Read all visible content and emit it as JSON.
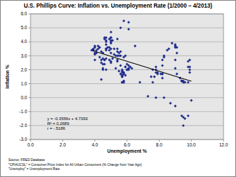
{
  "chart_data": {
    "type": "scatter",
    "title": "U.S. Phillips Curve: Inflation vs. Unemployment Rate (1/2000 – 4/2013)",
    "x_label": "Unemployment %",
    "y_label": "Inflation %",
    "xlim": [
      0,
      12
    ],
    "ylim": [
      -3,
      6
    ],
    "xticks": [
      {
        "value": 0,
        "label": "0.0"
      },
      {
        "value": 2,
        "label": "2.0"
      },
      {
        "value": 4,
        "label": "4.0"
      },
      {
        "value": 6,
        "label": "6.0"
      },
      {
        "value": 8,
        "label": "8.0"
      },
      {
        "value": 10,
        "label": "10.0"
      },
      {
        "value": 12,
        "label": "12.0"
      }
    ],
    "yticks": [
      {
        "value": -3,
        "label": "-3.0"
      },
      {
        "value": -2,
        "label": "-2.0"
      },
      {
        "value": -1,
        "label": "-1.0"
      },
      {
        "value": 0,
        "label": "0.0"
      },
      {
        "value": 1,
        "label": "1.0"
      },
      {
        "value": 2,
        "label": "2.0"
      },
      {
        "value": 3,
        "label": "3.0"
      },
      {
        "value": 4,
        "label": "4.0"
      },
      {
        "value": 5,
        "label": "5.0"
      },
      {
        "value": 6,
        "label": "6.0"
      }
    ],
    "grid": true,
    "annotations": [
      "y = -0.3556x + 4.7393",
      "R² = 0.2689",
      "r = -.5186"
    ],
    "source": [
      "Source:  FRED Database",
      "\"CPIAUCSL\" = Consumer Price Index for All Urban Consumers (% Change from Year Ago)",
      "\"Unemploy\" = Unemployment Rate"
    ],
    "series": [
      {
        "type": "scatter",
        "color": "#1c2a8c",
        "marker": "diamond",
        "x": [
          4.0,
          4.1,
          4.0,
          3.8,
          4.0,
          4.0,
          4.0,
          4.1,
          3.9,
          3.9,
          3.9,
          3.9,
          4.2,
          4.2,
          4.3,
          4.4,
          4.3,
          4.5,
          4.6,
          4.9,
          5.0,
          5.3,
          5.5,
          5.7,
          5.7,
          5.7,
          5.7,
          5.9,
          5.8,
          5.8,
          5.7,
          5.7,
          5.7,
          5.7,
          5.9,
          6.0,
          5.8,
          5.9,
          5.9,
          6.0,
          6.1,
          6.3,
          6.2,
          6.1,
          6.1,
          6.0,
          5.8,
          5.7,
          5.7,
          5.6,
          5.8,
          5.6,
          5.6,
          5.6,
          5.5,
          5.4,
          5.4,
          5.5,
          5.4,
          5.4,
          5.3,
          5.4,
          5.2,
          5.2,
          5.1,
          5.0,
          5.0,
          4.9,
          5.0,
          5.0,
          5.0,
          4.9,
          4.7,
          4.8,
          4.7,
          4.7,
          4.6,
          4.6,
          4.7,
          4.7,
          4.5,
          4.4,
          4.5,
          4.4,
          4.6,
          4.5,
          4.4,
          4.6,
          4.5,
          4.7,
          4.7,
          4.7,
          4.7,
          5.0,
          4.9,
          5.0,
          5.0,
          5.1,
          5.0,
          5.4,
          5.6,
          5.8,
          6.1,
          6.1,
          6.5,
          6.8,
          7.3,
          7.8,
          8.3,
          8.7,
          9.0,
          9.4,
          9.5,
          9.5,
          9.6,
          9.8,
          10.0,
          9.9,
          9.9,
          9.8,
          9.8,
          9.9,
          9.9,
          9.6,
          9.4,
          9.4,
          9.5,
          9.5,
          9.4,
          9.8,
          9.3,
          9.1,
          9.0,
          9.0,
          9.1,
          9.0,
          9.1,
          9.0,
          9.0,
          8.8,
          8.6,
          8.5,
          8.3,
          8.3,
          8.2,
          8.2,
          8.2,
          8.2,
          8.2,
          8.1,
          7.8,
          7.8,
          7.8,
          7.9,
          7.9,
          7.7,
          7.6,
          7.5,
          7.6
        ],
        "values": [
          2.7,
          3.2,
          3.2,
          3.4,
          3.1,
          3.7,
          3.6,
          3.4,
          3.5,
          3.4,
          3.4,
          3.4,
          3.7,
          3.5,
          2.9,
          3.3,
          3.6,
          3.2,
          2.7,
          2.7,
          2.6,
          2.1,
          1.9,
          1.6,
          1.1,
          1.1,
          1.5,
          1.6,
          1.2,
          1.1,
          1.5,
          1.8,
          1.6,
          2.0,
          2.2,
          2.4,
          2.9,
          3.0,
          2.2,
          2.0,
          2.1,
          2.1,
          2.2,
          2.3,
          2.0,
          2.0,
          1.8,
          1.9,
          1.9,
          1.7,
          1.7,
          2.3,
          3.0,
          3.3,
          3.0,
          2.7,
          2.6,
          3.2,
          3.5,
          3.3,
          3.0,
          3.0,
          3.1,
          3.5,
          2.8,
          2.5,
          3.2,
          3.6,
          4.7,
          4.3,
          3.5,
          3.4,
          4.0,
          3.6,
          3.4,
          3.5,
          4.2,
          4.3,
          4.1,
          3.8,
          2.1,
          1.3,
          2.0,
          2.5,
          2.4,
          2.8,
          2.7,
          2.7,
          2.4,
          2.0,
          2.8,
          3.5,
          4.3,
          4.1,
          4.2,
          4.3,
          4.0,
          4.1,
          3.9,
          4.2,
          5.0,
          5.5,
          5.4,
          4.9,
          3.7,
          1.1,
          0.1,
          0.0,
          0.0,
          -0.4,
          -0.6,
          -1.3,
          -1.4,
          -2.0,
          -1.5,
          -1.3,
          -0.2,
          1.8,
          2.7,
          2.6,
          2.2,
          2.2,
          2.0,
          1.1,
          1.2,
          1.2,
          1.1,
          1.2,
          1.2,
          1.1,
          1.4,
          1.7,
          2.1,
          2.7,
          3.2,
          3.6,
          3.6,
          3.7,
          3.8,
          3.9,
          3.5,
          3.4,
          3.0,
          2.9,
          2.7,
          2.3,
          1.7,
          1.7,
          1.4,
          1.7,
          2.0,
          2.2,
          1.8,
          1.8,
          1.7,
          1.5,
          2.0,
          1.5,
          1.1
        ]
      },
      {
        "type": "line",
        "color": "#000000",
        "line_style": "solid",
        "x": [
          3.9,
          10.0
        ],
        "values": [
          3.35,
          1.18
        ]
      }
    ]
  }
}
